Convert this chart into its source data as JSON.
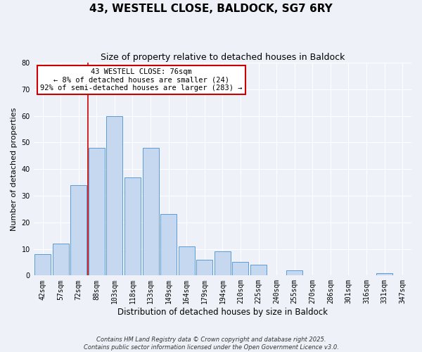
{
  "title": "43, WESTELL CLOSE, BALDOCK, SG7 6RY",
  "subtitle": "Size of property relative to detached houses in Baldock",
  "xlabel": "Distribution of detached houses by size in Baldock",
  "ylabel": "Number of detached properties",
  "bar_labels": [
    "42sqm",
    "57sqm",
    "72sqm",
    "88sqm",
    "103sqm",
    "118sqm",
    "133sqm",
    "149sqm",
    "164sqm",
    "179sqm",
    "194sqm",
    "210sqm",
    "225sqm",
    "240sqm",
    "255sqm",
    "270sqm",
    "286sqm",
    "301sqm",
    "316sqm",
    "331sqm",
    "347sqm"
  ],
  "bar_values": [
    8,
    12,
    34,
    48,
    60,
    37,
    48,
    23,
    11,
    6,
    9,
    5,
    4,
    0,
    2,
    0,
    0,
    0,
    0,
    1,
    0
  ],
  "bar_color": "#c5d8f0",
  "bar_edgecolor": "#5b9bd5",
  "vline_index": 3,
  "vline_color": "#cc0000",
  "ylim": [
    0,
    80
  ],
  "yticks": [
    0,
    10,
    20,
    30,
    40,
    50,
    60,
    70,
    80
  ],
  "annotation_title": "43 WESTELL CLOSE: 76sqm",
  "annotation_line1": "← 8% of detached houses are smaller (24)",
  "annotation_line2": "92% of semi-detached houses are larger (283) →",
  "annotation_box_facecolor": "#ffffff",
  "annotation_box_edgecolor": "#cc0000",
  "footer_line1": "Contains HM Land Registry data © Crown copyright and database right 2025.",
  "footer_line2": "Contains public sector information licensed under the Open Government Licence v3.0.",
  "bg_color": "#eef2f8",
  "grid_color": "#ffffff",
  "title_fontsize": 11,
  "subtitle_fontsize": 9,
  "xlabel_fontsize": 8.5,
  "ylabel_fontsize": 8,
  "tick_fontsize": 7,
  "annotation_fontsize": 7.5,
  "footer_fontsize": 6
}
